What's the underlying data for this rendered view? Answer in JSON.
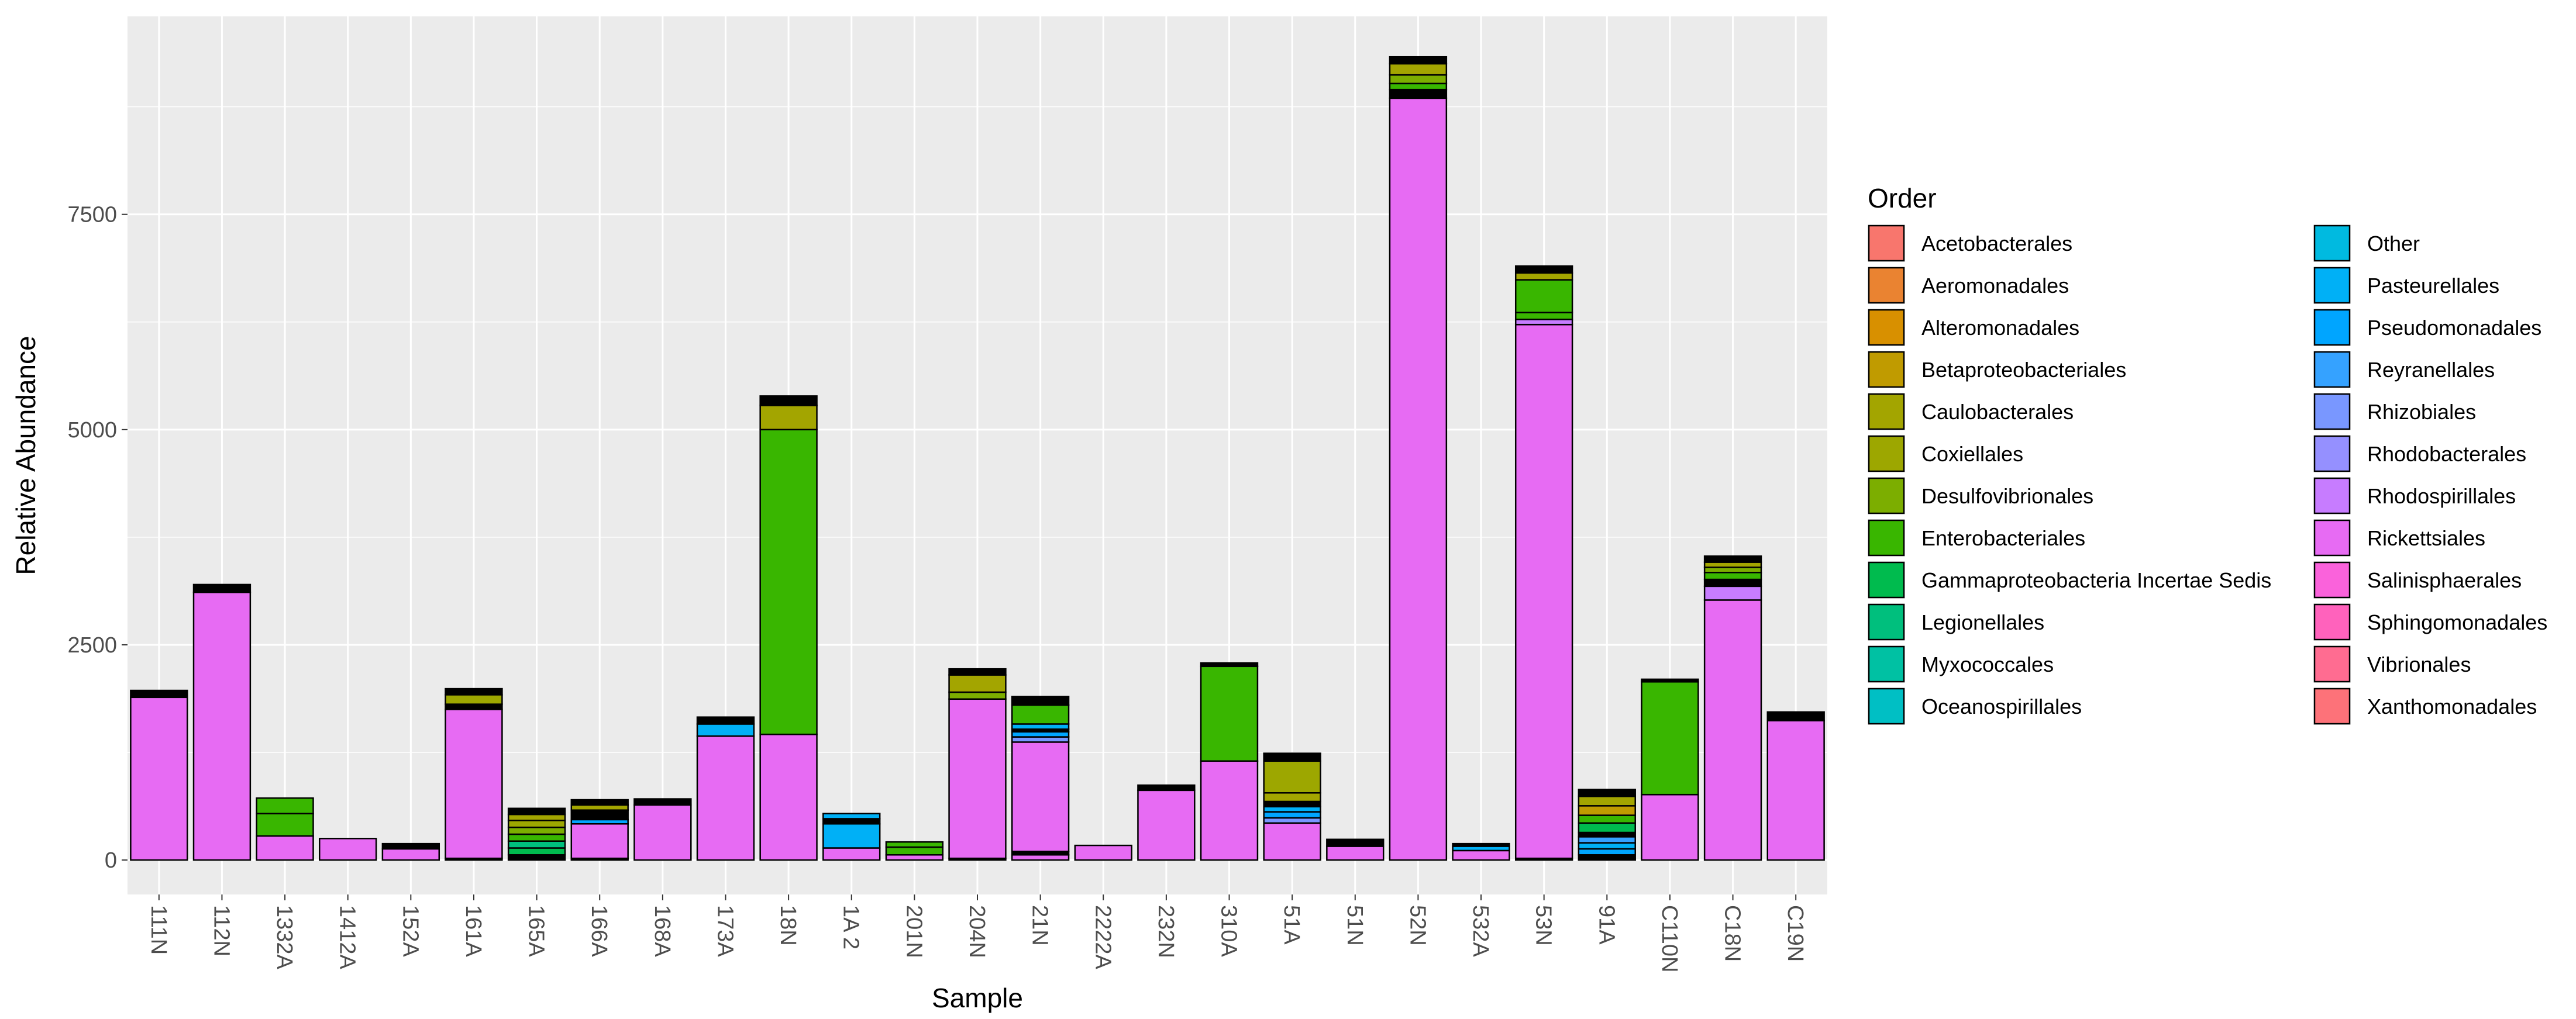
{
  "chart_data": {
    "type": "stacked-bar",
    "xlabel": "Sample",
    "ylabel": "Relative Abundance",
    "ylim": [
      -400,
      9800
    ],
    "yticks": [
      0,
      2500,
      5000,
      7500
    ],
    "ytick_labels": [
      "0",
      "2500",
      "5000",
      "7500"
    ],
    "legend_title": "Order",
    "legend_position": "right",
    "categories": [
      "111N",
      "112N",
      "1332A",
      "1412A",
      "152A",
      "161A",
      "165A",
      "166A",
      "168A",
      "173A",
      "18N",
      "1A 2",
      "201N",
      "204N",
      "21N",
      "2222A",
      "232N",
      "310A",
      "51A",
      "51N",
      "52N",
      "532A",
      "53N",
      "91A",
      "C110N",
      "C18N",
      "C19N"
    ],
    "orders": [
      {
        "name": "Acetobacterales",
        "color": "#F8766D"
      },
      {
        "name": "Aeromonadales",
        "color": "#EA8331"
      },
      {
        "name": "Alteromonadales",
        "color": "#D89000"
      },
      {
        "name": "Betaproteobacteriales",
        "color": "#C09B00"
      },
      {
        "name": "Caulobacterales",
        "color": "#A3A500"
      },
      {
        "name": "Coxiellales",
        "color": "#9DA700"
      },
      {
        "name": "Desulfovibrionales",
        "color": "#7CAE00"
      },
      {
        "name": "Enterobacteriales",
        "color": "#39B600"
      },
      {
        "name": "Gammaproteobacteria Incertae Sedis",
        "color": "#00BB4E"
      },
      {
        "name": "Legionellales",
        "color": "#00BF7D"
      },
      {
        "name": "Myxococcales",
        "color": "#00C1A3"
      },
      {
        "name": "Oceanospirillales",
        "color": "#00BFC4"
      },
      {
        "name": "Other",
        "color": "#00BAE0"
      },
      {
        "name": "Pasteurellales",
        "color": "#00B0F6"
      },
      {
        "name": "Pseudomonadales",
        "color": "#00A5FF"
      },
      {
        "name": "Reyranellales",
        "color": "#35A2FF"
      },
      {
        "name": "Rhizobiales",
        "color": "#7997FF"
      },
      {
        "name": "Rhodobacterales",
        "color": "#9590FF"
      },
      {
        "name": "Rhodospirillales",
        "color": "#C77CFF"
      },
      {
        "name": "Rickettsiales",
        "color": "#E76BF3"
      },
      {
        "name": "Salinisphaerales",
        "color": "#FA62DB"
      },
      {
        "name": "Sphingomonadales",
        "color": "#FF62BC"
      },
      {
        "name": "Vibrionales",
        "color": "#FF6C91"
      },
      {
        "name": "Xanthomonadales",
        "color": "#FD7279"
      }
    ],
    "stacks": [
      {
        "sample": "111N",
        "segments": [
          {
            "order": "Rickettsiales",
            "value": 1890
          },
          {
            "order": "Other",
            "value": 80
          }
        ]
      },
      {
        "sample": "112N",
        "segments": [
          {
            "order": "Rickettsiales",
            "value": 3110
          },
          {
            "order": "Other",
            "value": 90
          }
        ]
      },
      {
        "sample": "1332A",
        "segments": [
          {
            "order": "Rickettsiales",
            "value": 280
          },
          {
            "order": "Enterobacteriales",
            "value": 260
          },
          {
            "order": "Enterobacteriales",
            "value": 180
          }
        ]
      },
      {
        "sample": "1412A",
        "segments": [
          {
            "order": "Rickettsiales",
            "value": 250
          }
        ]
      },
      {
        "sample": "152A",
        "segments": [
          {
            "order": "Rickettsiales",
            "value": 130
          },
          {
            "order": "Other",
            "value": 60
          }
        ]
      },
      {
        "sample": "161A",
        "segments": [
          {
            "order": "Other",
            "value": 20
          },
          {
            "order": "Rickettsiales",
            "value": 1730
          },
          {
            "order": "Other",
            "value": 60
          },
          {
            "order": "Coxiellales",
            "value": 110
          },
          {
            "order": "Other",
            "value": 70
          }
        ]
      },
      {
        "sample": "165A",
        "segments": [
          {
            "order": "Other",
            "value": 60
          },
          {
            "order": "Gammaproteobacteria Incertae Sedis",
            "value": 80
          },
          {
            "order": "Legionellales",
            "value": 80
          },
          {
            "order": "Enterobacteriales",
            "value": 80
          },
          {
            "order": "Desulfovibrionales",
            "value": 80
          },
          {
            "order": "Coxiellales",
            "value": 80
          },
          {
            "order": "Caulobacterales",
            "value": 70
          },
          {
            "order": "Other",
            "value": 70
          }
        ]
      },
      {
        "sample": "166A",
        "segments": [
          {
            "order": "Other",
            "value": 20
          },
          {
            "order": "Rickettsiales",
            "value": 400
          },
          {
            "order": "Pseudomonadales",
            "value": 50
          },
          {
            "order": "Other",
            "value": 110
          },
          {
            "order": "Caulobacterales",
            "value": 60
          },
          {
            "order": "Other",
            "value": 60
          }
        ]
      },
      {
        "sample": "168A",
        "segments": [
          {
            "order": "Rickettsiales",
            "value": 640
          },
          {
            "order": "Other",
            "value": 70
          }
        ]
      },
      {
        "sample": "173A",
        "segments": [
          {
            "order": "Rickettsiales",
            "value": 1440
          },
          {
            "order": "Pasteurellales",
            "value": 140
          },
          {
            "order": "Other",
            "value": 80
          }
        ]
      },
      {
        "sample": "18N",
        "segments": [
          {
            "order": "Rickettsiales",
            "value": 1460
          },
          {
            "order": "Enterobacteriales",
            "value": 3540
          },
          {
            "order": "Caulobacterales",
            "value": 280
          },
          {
            "order": "Other",
            "value": 110
          }
        ]
      },
      {
        "sample": "1A 2",
        "segments": [
          {
            "order": "Rickettsiales",
            "value": 140
          },
          {
            "order": "Pasteurellales",
            "value": 280
          },
          {
            "order": "Other",
            "value": 60
          },
          {
            "order": "Pasteurellales",
            "value": 60
          }
        ]
      },
      {
        "sample": "201N",
        "segments": [
          {
            "order": "Rickettsiales",
            "value": 60
          },
          {
            "order": "Enterobacteriales",
            "value": 90
          },
          {
            "order": "Enterobacteriales",
            "value": 60
          }
        ]
      },
      {
        "sample": "204N",
        "segments": [
          {
            "order": "Other",
            "value": 20
          },
          {
            "order": "Rickettsiales",
            "value": 1850
          },
          {
            "order": "Desulfovibrionales",
            "value": 80
          },
          {
            "order": "Caulobacterales",
            "value": 200
          },
          {
            "order": "Other",
            "value": 70
          }
        ]
      },
      {
        "sample": "21N",
        "segments": [
          {
            "order": "Rickettsiales",
            "value": 60
          },
          {
            "order": "Other",
            "value": 40
          },
          {
            "order": "Rickettsiales",
            "value": 1270
          },
          {
            "order": "Rhizobiales",
            "value": 60
          },
          {
            "order": "Pseudomonadales",
            "value": 60
          },
          {
            "order": "Other",
            "value": 30
          },
          {
            "order": "Pasteurellales",
            "value": 60
          },
          {
            "order": "Enterobacteriales",
            "value": 220
          },
          {
            "order": "Other",
            "value": 100
          }
        ]
      },
      {
        "sample": "2222A",
        "segments": [
          {
            "order": "Rickettsiales",
            "value": 170
          }
        ]
      },
      {
        "sample": "232N",
        "segments": [
          {
            "order": "Rickettsiales",
            "value": 810
          },
          {
            "order": "Other",
            "value": 60
          }
        ]
      },
      {
        "sample": "310A",
        "segments": [
          {
            "order": "Rickettsiales",
            "value": 1150
          },
          {
            "order": "Enterobacteriales",
            "value": 1100
          },
          {
            "order": "Other",
            "value": 40
          }
        ]
      },
      {
        "sample": "51A",
        "segments": [
          {
            "order": "Rickettsiales",
            "value": 430
          },
          {
            "order": "Rhizobiales",
            "value": 60
          },
          {
            "order": "Pseudomonadales",
            "value": 70
          },
          {
            "order": "Pasteurellales",
            "value": 60
          },
          {
            "order": "Other",
            "value": 60
          },
          {
            "order": "Caulobacterales",
            "value": 100
          },
          {
            "order": "Coxiellales",
            "value": 370
          },
          {
            "order": "Other",
            "value": 90
          }
        ]
      },
      {
        "sample": "51N",
        "segments": [
          {
            "order": "Rickettsiales",
            "value": 160
          },
          {
            "order": "Other",
            "value": 80
          }
        ]
      },
      {
        "sample": "52N",
        "segments": [
          {
            "order": "Rickettsiales",
            "value": 8850
          },
          {
            "order": "Other",
            "value": 100
          },
          {
            "order": "Enterobacteriales",
            "value": 70
          },
          {
            "order": "Desulfovibrionales",
            "value": 100
          },
          {
            "order": "Caulobacterales",
            "value": 130
          },
          {
            "order": "Other",
            "value": 80
          }
        ]
      },
      {
        "sample": "532A",
        "segments": [
          {
            "order": "Rickettsiales",
            "value": 110
          },
          {
            "order": "Pasteurellales",
            "value": 50
          },
          {
            "order": "Other",
            "value": 30
          }
        ]
      },
      {
        "sample": "53N",
        "segments": [
          {
            "order": "Other",
            "value": 20
          },
          {
            "order": "Rickettsiales",
            "value": 6200
          },
          {
            "order": "Rhodospirillales",
            "value": 60
          },
          {
            "order": "Enterobacteriales",
            "value": 80
          },
          {
            "order": "Enterobacteriales",
            "value": 380
          },
          {
            "order": "Caulobacterales",
            "value": 80
          },
          {
            "order": "Other",
            "value": 80
          }
        ]
      },
      {
        "sample": "91A",
        "segments": [
          {
            "order": "Other",
            "value": 60
          },
          {
            "order": "Pseudomonadales",
            "value": 70
          },
          {
            "order": "Pasteurellales",
            "value": 70
          },
          {
            "order": "Reyranellales",
            "value": 70
          },
          {
            "order": "Other",
            "value": 50
          },
          {
            "order": "Gammaproteobacteria Incertae Sedis",
            "value": 110
          },
          {
            "order": "Enterobacteriales",
            "value": 90
          },
          {
            "order": "Betaproteobacteriales",
            "value": 110
          },
          {
            "order": "Caulobacterales",
            "value": 110
          },
          {
            "order": "Other",
            "value": 80
          }
        ]
      },
      {
        "sample": "C110N",
        "segments": [
          {
            "order": "Rickettsiales",
            "value": 760
          },
          {
            "order": "Enterobacteriales",
            "value": 1310
          },
          {
            "order": "Other",
            "value": 30
          }
        ]
      },
      {
        "sample": "C18N",
        "segments": [
          {
            "order": "Rickettsiales",
            "value": 3020
          },
          {
            "order": "Rhodospirillales",
            "value": 160
          },
          {
            "order": "Other",
            "value": 80
          },
          {
            "order": "Enterobacteriales",
            "value": 80
          },
          {
            "order": "Desulfovibrionales",
            "value": 60
          },
          {
            "order": "Caulobacterales",
            "value": 60
          },
          {
            "order": "Other",
            "value": 70
          }
        ]
      },
      {
        "sample": "C19N",
        "segments": [
          {
            "order": "Rickettsiales",
            "value": 1620
          },
          {
            "order": "Other",
            "value": 100
          }
        ]
      }
    ]
  }
}
